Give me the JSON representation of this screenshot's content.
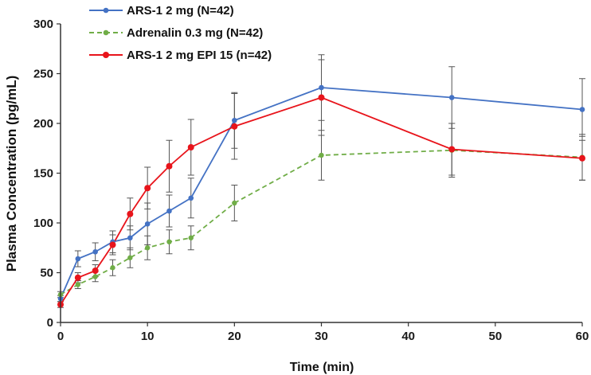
{
  "chart_data": {
    "type": "line",
    "title": "",
    "xlabel": "Time (min)",
    "ylabel": "Plasma Concentration (pg/mL)",
    "xlim": [
      0,
      60
    ],
    "ylim": [
      0,
      300
    ],
    "xticks": [
      0,
      10,
      20,
      30,
      40,
      50,
      60
    ],
    "yticks": [
      0,
      50,
      100,
      150,
      200,
      250,
      300
    ],
    "grid": false,
    "legend_position": "top-left",
    "series": [
      {
        "name": "ARS-1 2 mg (N=42)",
        "color": "#4472c4",
        "dashed": false,
        "x": [
          0,
          2,
          4,
          6,
          8,
          10,
          12.5,
          15,
          20,
          30,
          45,
          60
        ],
        "y": [
          24,
          64,
          71,
          81,
          85,
          99,
          112,
          125,
          203,
          236,
          226,
          214
        ],
        "err": [
          3,
          8,
          9,
          11,
          12,
          21,
          16,
          20,
          28,
          33,
          31,
          31
        ]
      },
      {
        "name": "Adrenalin 0.3 mg (N=42)",
        "color": "#70ad47",
        "dashed": true,
        "x": [
          0,
          2,
          4,
          6,
          8,
          10,
          12.5,
          15,
          20,
          30,
          45,
          60
        ],
        "y": [
          28,
          38,
          46,
          55,
          65,
          75,
          81,
          85,
          120,
          168,
          173,
          166
        ],
        "err": [
          3,
          4,
          5,
          8,
          10,
          12,
          12,
          12,
          18,
          25,
          27,
          23
        ]
      },
      {
        "name": "ARS-1 2 mg EPI 15 (n=42)",
        "color": "#e8141b",
        "dashed": false,
        "x": [
          0,
          2,
          4,
          6,
          8,
          10,
          12.5,
          15,
          20,
          30,
          45,
          60
        ],
        "y": [
          18,
          45,
          52,
          78,
          109,
          135,
          157,
          176,
          197,
          226,
          174,
          165
        ],
        "err": [
          3,
          5,
          6,
          10,
          16,
          21,
          26,
          28,
          33,
          38,
          26,
          22
        ]
      }
    ]
  }
}
